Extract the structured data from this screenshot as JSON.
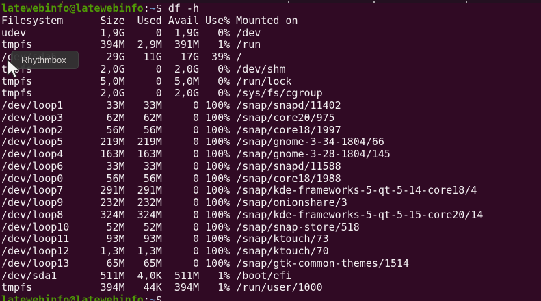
{
  "terminal": {
    "bg_color": "#300a24",
    "fg_color": "#f2eff1",
    "prompt_green": "#4e9a06",
    "path_blue": "#729fcf",
    "prompt": {
      "user_host": "latewebinfo@latewebinfo",
      "colon": ":",
      "path": "~",
      "dollar": "$",
      "command": "df -h"
    },
    "header": {
      "filesystem": "Filesystem",
      "size": "Size",
      "used": "Used",
      "avail": "Avail",
      "use_pct": "Use%",
      "mounted_on": "Mounted on"
    },
    "rows": [
      {
        "fs": "udev",
        "size": "1,9G",
        "used": "0",
        "avail": "1,9G",
        "use": "0%",
        "mount": "/dev"
      },
      {
        "fs": "tmpfs",
        "size": "394M",
        "used": "2,9M",
        "avail": "391M",
        "use": "1%",
        "mount": "/run"
      },
      {
        "fs": "/dev/sda5",
        "size": "29G",
        "used": "11G",
        "avail": "17G",
        "use": "39%",
        "mount": "/"
      },
      {
        "fs": "tmpfs",
        "size": "2,0G",
        "used": "0",
        "avail": "2,0G",
        "use": "0%",
        "mount": "/dev/shm"
      },
      {
        "fs": "tmpfs",
        "size": "5,0M",
        "used": "0",
        "avail": "5,0M",
        "use": "0%",
        "mount": "/run/lock"
      },
      {
        "fs": "tmpfs",
        "size": "2,0G",
        "used": "0",
        "avail": "2,0G",
        "use": "0%",
        "mount": "/sys/fs/cgroup"
      },
      {
        "fs": "/dev/loop1",
        "size": "33M",
        "used": "33M",
        "avail": "0",
        "use": "100%",
        "mount": "/snap/snapd/11402"
      },
      {
        "fs": "/dev/loop3",
        "size": "62M",
        "used": "62M",
        "avail": "0",
        "use": "100%",
        "mount": "/snap/core20/975"
      },
      {
        "fs": "/dev/loop2",
        "size": "56M",
        "used": "56M",
        "avail": "0",
        "use": "100%",
        "mount": "/snap/core18/1997"
      },
      {
        "fs": "/dev/loop5",
        "size": "219M",
        "used": "219M",
        "avail": "0",
        "use": "100%",
        "mount": "/snap/gnome-3-34-1804/66"
      },
      {
        "fs": "/dev/loop4",
        "size": "163M",
        "used": "163M",
        "avail": "0",
        "use": "100%",
        "mount": "/snap/gnome-3-28-1804/145"
      },
      {
        "fs": "/dev/loop6",
        "size": "33M",
        "used": "33M",
        "avail": "0",
        "use": "100%",
        "mount": "/snap/snapd/11588"
      },
      {
        "fs": "/dev/loop0",
        "size": "56M",
        "used": "56M",
        "avail": "0",
        "use": "100%",
        "mount": "/snap/core18/1988"
      },
      {
        "fs": "/dev/loop7",
        "size": "291M",
        "used": "291M",
        "avail": "0",
        "use": "100%",
        "mount": "/snap/kde-frameworks-5-qt-5-14-core18/4"
      },
      {
        "fs": "/dev/loop9",
        "size": "232M",
        "used": "232M",
        "avail": "0",
        "use": "100%",
        "mount": "/snap/onionshare/3"
      },
      {
        "fs": "/dev/loop8",
        "size": "324M",
        "used": "324M",
        "avail": "0",
        "use": "100%",
        "mount": "/snap/kde-frameworks-5-qt-5-15-core20/14"
      },
      {
        "fs": "/dev/loop10",
        "size": "52M",
        "used": "52M",
        "avail": "0",
        "use": "100%",
        "mount": "/snap/snap-store/518"
      },
      {
        "fs": "/dev/loop11",
        "size": "93M",
        "used": "93M",
        "avail": "0",
        "use": "100%",
        "mount": "/snap/ktouch/73"
      },
      {
        "fs": "/dev/loop12",
        "size": "1,3M",
        "used": "1,3M",
        "avail": "0",
        "use": "100%",
        "mount": "/snap/ktouch/70"
      },
      {
        "fs": "/dev/loop13",
        "size": "65M",
        "used": "65M",
        "avail": "0",
        "use": "100%",
        "mount": "/snap/gtk-common-themes/1514"
      },
      {
        "fs": "/dev/sda1",
        "size": "511M",
        "used": "4,0K",
        "avail": "511M",
        "use": "1%",
        "mount": "/boot/efi"
      },
      {
        "fs": "tmpfs",
        "size": "394M",
        "used": "44K",
        "avail": "394M",
        "use": "1%",
        "mount": "/run/user/1000"
      }
    ],
    "partial_next_prompt": {
      "user_host": "latewebinfo@latewebinfo",
      "colon": ":",
      "path": "~",
      "dollar": "$"
    }
  },
  "tooltip": {
    "label": "Rhythmbox"
  },
  "cursor": "arrow-pointer"
}
